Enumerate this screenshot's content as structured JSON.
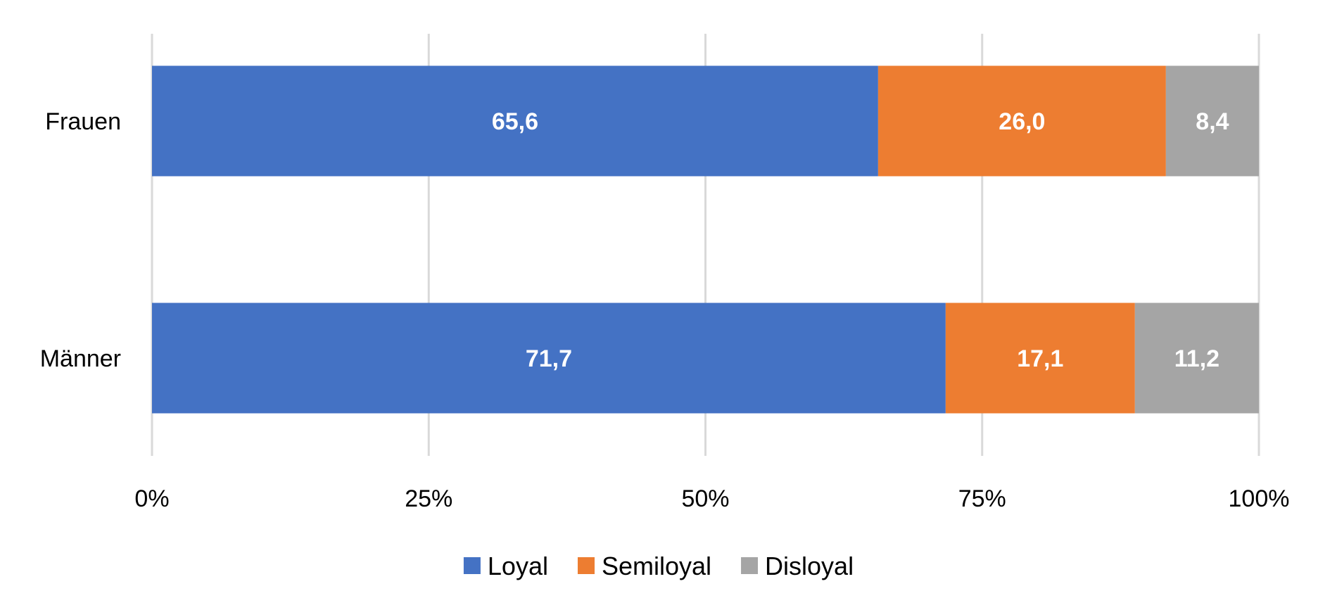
{
  "chart_data": {
    "type": "bar",
    "orientation": "horizontal",
    "stacked": "percent",
    "categories": [
      "Frauen",
      "Männer"
    ],
    "series": [
      {
        "name": "Loyal",
        "color": "#4472C4",
        "values": [
          65.6,
          71.7
        ],
        "labels": [
          "65,6",
          "71,7"
        ]
      },
      {
        "name": "Semiloyal",
        "color": "#ED7D31",
        "values": [
          26.0,
          17.1
        ],
        "labels": [
          "26,0",
          "17,1"
        ]
      },
      {
        "name": "Disloyal",
        "color": "#A5A5A5",
        "values": [
          8.4,
          11.2
        ],
        "labels": [
          "8,4",
          "11,2"
        ]
      }
    ],
    "xlim": [
      0,
      100
    ],
    "x_ticks": [
      0,
      25,
      50,
      75,
      100
    ],
    "x_tick_labels": [
      "0%",
      "25%",
      "50%",
      "75%",
      "100%"
    ],
    "grid": "vertical",
    "legend": "bottom-center",
    "title": "",
    "xlabel": "",
    "ylabel": ""
  }
}
